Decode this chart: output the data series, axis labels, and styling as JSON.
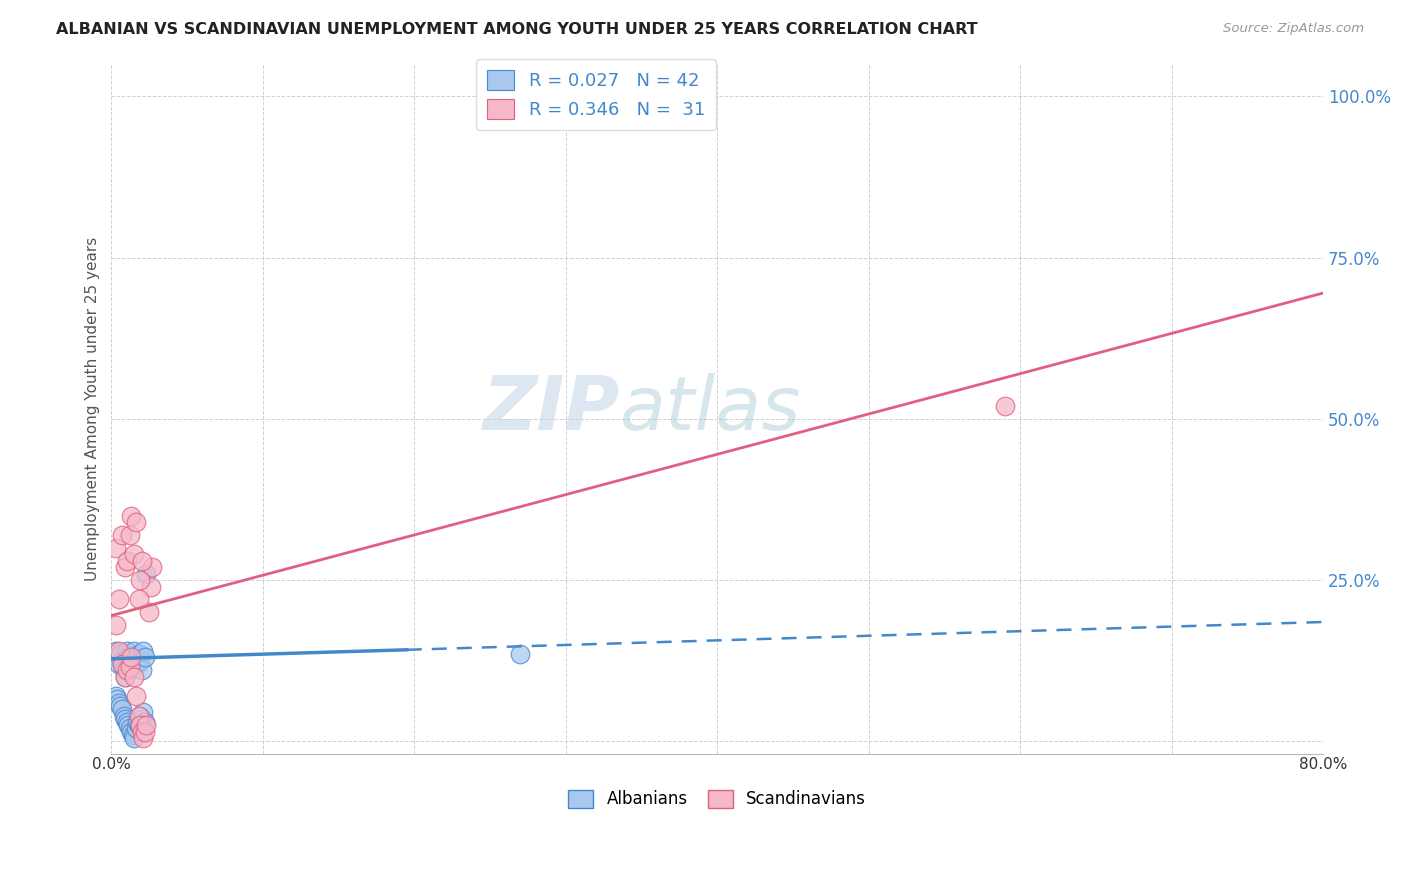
{
  "title": "ALBANIAN VS SCANDINAVIAN UNEMPLOYMENT AMONG YOUTH UNDER 25 YEARS CORRELATION CHART",
  "source": "Source: ZipAtlas.com",
  "ylabel": "Unemployment Among Youth under 25 years",
  "xlim": [
    0.0,
    0.8
  ],
  "ylim": [
    -0.02,
    1.05
  ],
  "legend_albanian_R": "0.027",
  "legend_albanian_N": "42",
  "legend_scandinavian_R": "0.346",
  "legend_scandinavian_N": "31",
  "albanian_color": "#a8c8f0",
  "scandinavian_color": "#f5b8c8",
  "trend_albanian_color": "#4488cc",
  "trend_scandinavian_color": "#e06080",
  "watermark_zip": "ZIP",
  "watermark_atlas": "atlas",
  "watermark_color": "#c8d8ee",
  "albanian_scatter_x": [
    0.003,
    0.004,
    0.005,
    0.006,
    0.007,
    0.008,
    0.009,
    0.01,
    0.011,
    0.012,
    0.013,
    0.014,
    0.015,
    0.016,
    0.017,
    0.018,
    0.019,
    0.02,
    0.021,
    0.022,
    0.003,
    0.004,
    0.005,
    0.006,
    0.007,
    0.008,
    0.009,
    0.01,
    0.011,
    0.012,
    0.013,
    0.014,
    0.015,
    0.016,
    0.017,
    0.018,
    0.019,
    0.02,
    0.021,
    0.022,
    0.023,
    0.27
  ],
  "albanian_scatter_y": [
    0.14,
    0.13,
    0.12,
    0.135,
    0.125,
    0.11,
    0.1,
    0.14,
    0.13,
    0.12,
    0.115,
    0.13,
    0.14,
    0.13,
    0.12,
    0.135,
    0.125,
    0.11,
    0.14,
    0.13,
    0.07,
    0.065,
    0.06,
    0.055,
    0.05,
    0.04,
    0.035,
    0.03,
    0.025,
    0.02,
    0.015,
    0.01,
    0.005,
    0.02,
    0.03,
    0.025,
    0.04,
    0.035,
    0.045,
    0.03,
    0.26,
    0.135
  ],
  "scandinavian_scatter_x": [
    0.003,
    0.005,
    0.007,
    0.009,
    0.01,
    0.012,
    0.013,
    0.015,
    0.016,
    0.018,
    0.019,
    0.02,
    0.021,
    0.022,
    0.023,
    0.025,
    0.026,
    0.027,
    0.003,
    0.005,
    0.007,
    0.009,
    0.01,
    0.012,
    0.013,
    0.015,
    0.016,
    0.018,
    0.019,
    0.02,
    0.59
  ],
  "scandinavian_scatter_y": [
    0.18,
    0.14,
    0.12,
    0.1,
    0.11,
    0.115,
    0.13,
    0.1,
    0.07,
    0.04,
    0.025,
    0.015,
    0.005,
    0.015,
    0.025,
    0.2,
    0.24,
    0.27,
    0.3,
    0.22,
    0.32,
    0.27,
    0.28,
    0.32,
    0.35,
    0.29,
    0.34,
    0.22,
    0.25,
    0.28,
    0.52
  ],
  "trend_alb_x0": 0.0,
  "trend_alb_x_solid_end": 0.195,
  "trend_alb_x1": 0.8,
  "trend_alb_y0": 0.128,
  "trend_alb_y1": 0.185,
  "trend_scan_x0": 0.0,
  "trend_scan_x1": 0.8,
  "trend_scan_y0": 0.195,
  "trend_scan_y1": 0.695
}
